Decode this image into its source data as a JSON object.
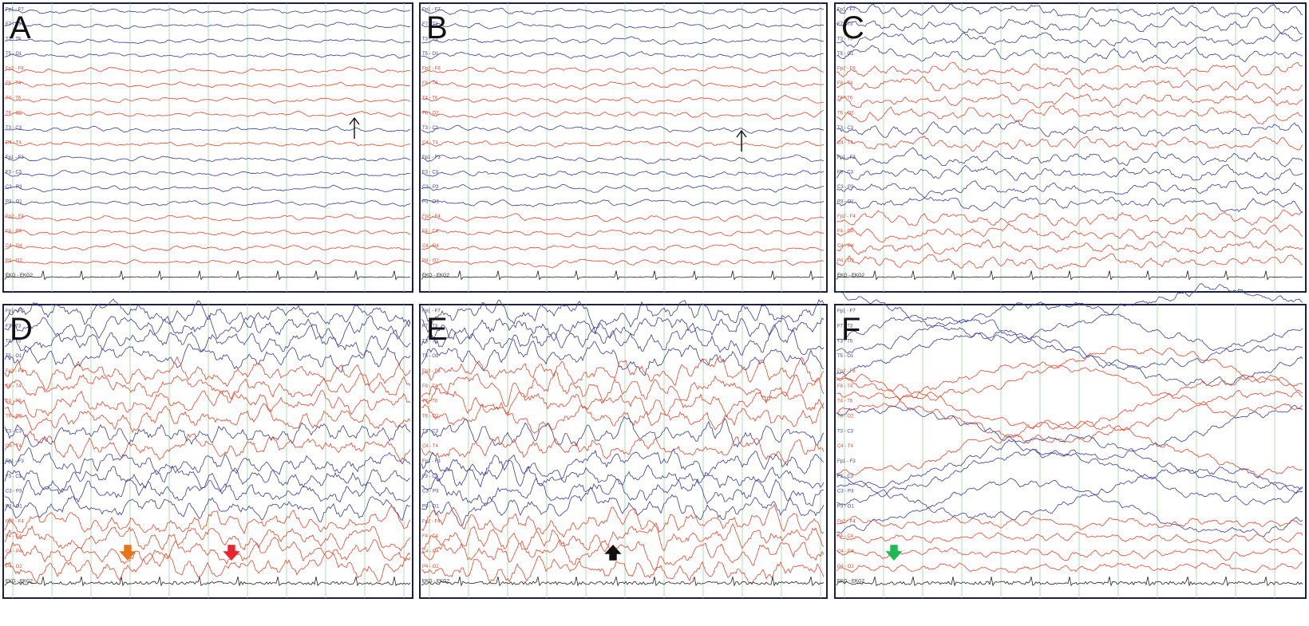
{
  "panels": [
    {
      "label": "A"
    },
    {
      "label": "B"
    },
    {
      "label": "C"
    },
    {
      "label": "D"
    },
    {
      "label": "E"
    },
    {
      "label": "F"
    }
  ],
  "channels": [
    "Fp1 - F7",
    "F7 - T3",
    "T3 - T5",
    "T5 - O1",
    "Fp2 - F8",
    "F8 - T4",
    "T4 - T6",
    "T6 - O2",
    "T3 - C3",
    "C4 - T4",
    "Fp1 - F3",
    "F3 - C3",
    "C3 - P3",
    "P3 - O1",
    "Fp2 - F4",
    "F4 - C4",
    "C4 - P4",
    "P4 - O2"
  ],
  "ekg_label": "EKG - EKG2"
}
